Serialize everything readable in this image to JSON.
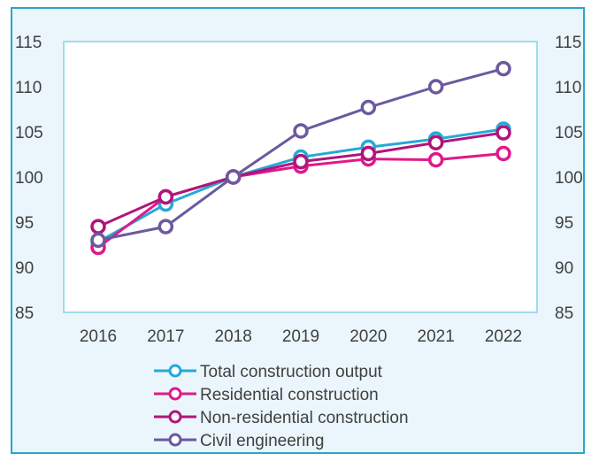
{
  "chart_data": {
    "type": "line",
    "title": "",
    "xlabel": "",
    "ylabel": "",
    "categories": [
      "2016",
      "2017",
      "2018",
      "2019",
      "2020",
      "2021",
      "2022"
    ],
    "ylim": [
      85,
      115
    ],
    "yticks": [
      85,
      90,
      95,
      100,
      105,
      110,
      115
    ],
    "secondary_y_axis": true,
    "grid": false,
    "legend_position": "bottom",
    "series": [
      {
        "name": "Total construction output",
        "color": "#25a9d6",
        "values": [
          92.8,
          97.0,
          100.0,
          102.2,
          103.3,
          104.2,
          105.3
        ]
      },
      {
        "name": "Residential construction",
        "color": "#e0198a",
        "values": [
          92.2,
          97.8,
          100.0,
          101.2,
          102.0,
          101.9,
          102.6
        ]
      },
      {
        "name": "Non-residential construction",
        "color": "#b0157a",
        "values": [
          94.5,
          97.8,
          100.0,
          101.7,
          102.6,
          103.8,
          104.9
        ]
      },
      {
        "name": "Civil engineering",
        "color": "#6b5a9e",
        "values": [
          93.0,
          94.5,
          100.0,
          105.1,
          107.7,
          110.0,
          112.0
        ]
      }
    ]
  }
}
